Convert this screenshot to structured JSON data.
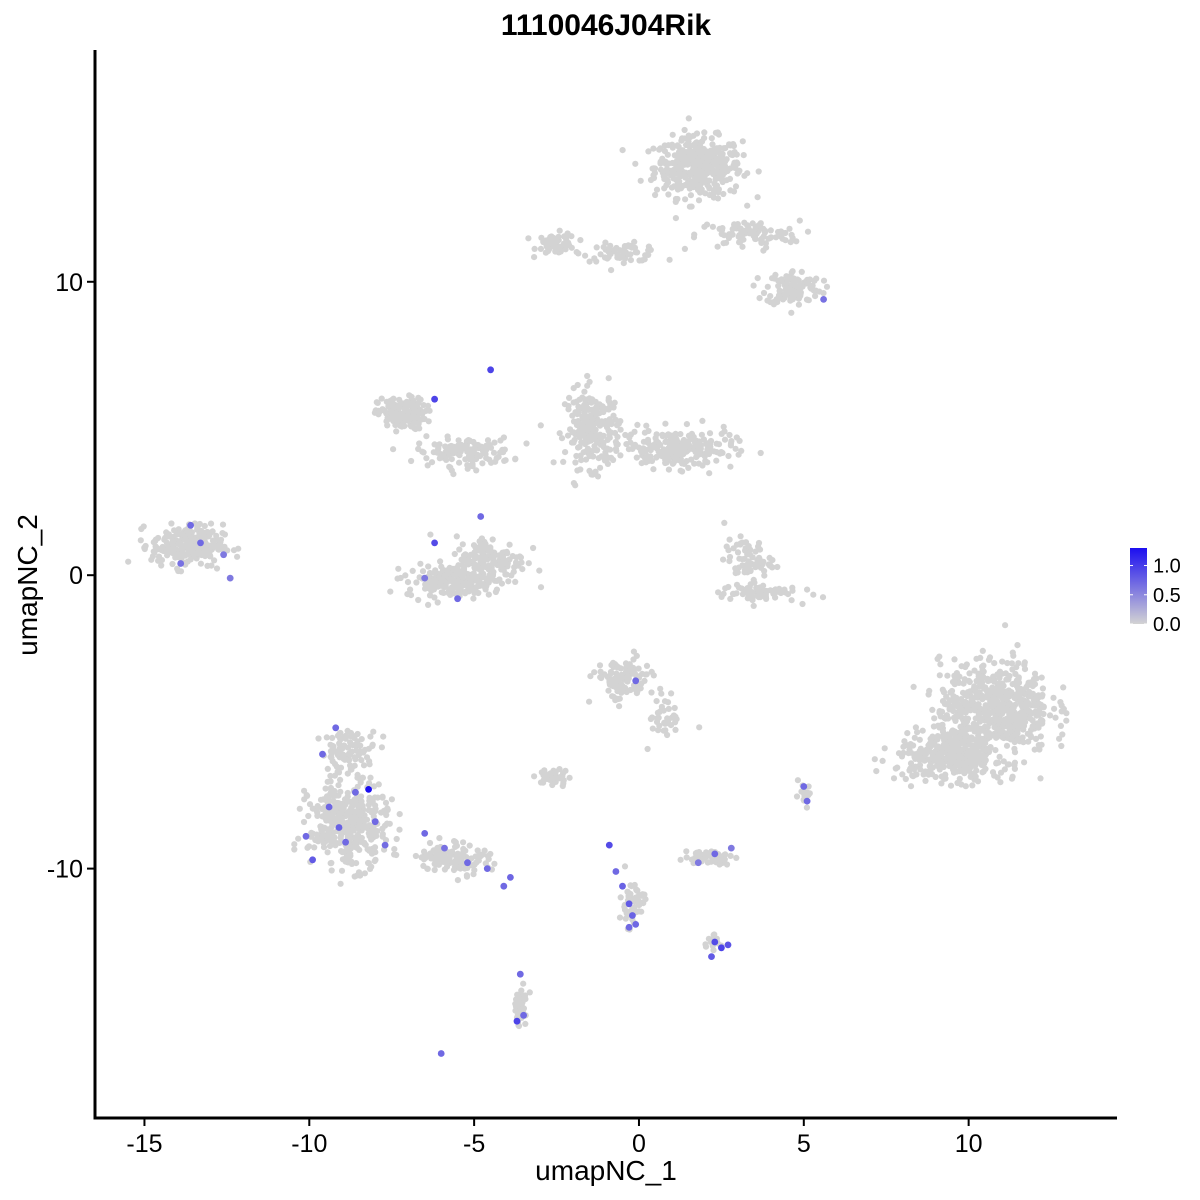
{
  "chart_data": {
    "type": "scatter",
    "title": "1110046J04Rik",
    "xlabel": "umapNC_1",
    "ylabel": "umapNC_2",
    "xlim": [
      -16.5,
      14.5
    ],
    "ylim": [
      -18.5,
      17.9
    ],
    "x_ticks": [
      -15,
      -10,
      -5,
      0,
      5,
      10
    ],
    "x_tick_labels": [
      "-15",
      "-10",
      "-5",
      "0",
      "5",
      "10"
    ],
    "y_ticks": [
      -10,
      0,
      10
    ],
    "y_tick_labels": [
      "-10",
      "0",
      "10"
    ],
    "grid": false,
    "legend": {
      "placement": "right",
      "title": "",
      "ticks": [
        0.0,
        0.5,
        1.0
      ],
      "tick_labels": [
        "0.0",
        "0.5",
        "1.0"
      ],
      "range": [
        0,
        1.3
      ],
      "low_color": "#d3d3d3",
      "high_color": "#1c0ff0"
    },
    "point_color_zero": "#d3d3d3",
    "clusters": [
      {
        "center": [
          1.8,
          13.9
        ],
        "spread": [
          1.1,
          0.85
        ],
        "n": 420
      },
      {
        "center": [
          -2.5,
          11.3
        ],
        "spread": [
          0.5,
          0.3
        ],
        "n": 60
      },
      {
        "center": [
          -0.5,
          11.0
        ],
        "spread": [
          1.0,
          0.25
        ],
        "n": 60
      },
      {
        "center": [
          3.3,
          11.6
        ],
        "spread": [
          1.3,
          0.4
        ],
        "n": 90
      },
      {
        "center": [
          4.7,
          9.8
        ],
        "spread": [
          0.7,
          0.5
        ],
        "n": 110
      },
      {
        "center": [
          -7.2,
          5.5
        ],
        "spread": [
          0.6,
          0.45
        ],
        "n": 160
      },
      {
        "center": [
          -5.3,
          4.2
        ],
        "spread": [
          1.2,
          0.4
        ],
        "n": 130
      },
      {
        "center": [
          -1.4,
          5.0
        ],
        "spread": [
          0.7,
          1.1
        ],
        "n": 230
      },
      {
        "center": [
          1.2,
          4.3
        ],
        "spread": [
          1.4,
          0.55
        ],
        "n": 220
      },
      {
        "center": [
          -13.7,
          1.0
        ],
        "spread": [
          0.9,
          0.6
        ],
        "n": 240
      },
      {
        "center": [
          -4.5,
          0.5
        ],
        "spread": [
          0.9,
          0.7
        ],
        "n": 150
      },
      {
        "center": [
          -5.7,
          -0.2
        ],
        "spread": [
          1.1,
          0.45
        ],
        "n": 190
      },
      {
        "center": [
          3.3,
          0.5
        ],
        "spread": [
          0.6,
          0.6
        ],
        "n": 70
      },
      {
        "center": [
          3.6,
          -0.6
        ],
        "spread": [
          1.0,
          0.25
        ],
        "n": 70
      },
      {
        "center": [
          10.8,
          -4.5
        ],
        "spread": [
          1.4,
          1.3
        ],
        "n": 600
      },
      {
        "center": [
          9.5,
          -6.2
        ],
        "spread": [
          1.4,
          0.7
        ],
        "n": 350
      },
      {
        "center": [
          -0.5,
          -3.6
        ],
        "spread": [
          0.7,
          0.6
        ],
        "n": 120
      },
      {
        "center": [
          0.8,
          -4.8
        ],
        "spread": [
          0.4,
          0.7
        ],
        "n": 40
      },
      {
        "center": [
          -8.8,
          -8.5
        ],
        "spread": [
          1.0,
          1.2
        ],
        "n": 380
      },
      {
        "center": [
          -8.8,
          -6.0
        ],
        "spread": [
          0.7,
          0.6
        ],
        "n": 90
      },
      {
        "center": [
          -5.6,
          -9.6
        ],
        "spread": [
          0.9,
          0.45
        ],
        "n": 120
      },
      {
        "center": [
          -2.6,
          -6.9
        ],
        "spread": [
          0.4,
          0.25
        ],
        "n": 45
      },
      {
        "center": [
          2.1,
          -9.6
        ],
        "spread": [
          0.6,
          0.2
        ],
        "n": 55
      },
      {
        "center": [
          -0.2,
          -11.2
        ],
        "spread": [
          0.3,
          0.7
        ],
        "n": 55
      },
      {
        "center": [
          -3.6,
          -14.7
        ],
        "spread": [
          0.2,
          0.6
        ],
        "n": 35
      },
      {
        "center": [
          2.2,
          -12.5
        ],
        "spread": [
          0.25,
          0.2
        ],
        "n": 20
      },
      {
        "center": [
          5.0,
          -7.5
        ],
        "spread": [
          0.2,
          0.3
        ],
        "n": 15
      }
    ],
    "expressing_points": [
      {
        "x": -8.2,
        "y": -7.3,
        "v": 1.3
      },
      {
        "x": -9.9,
        "y": -9.7,
        "v": 0.8
      },
      {
        "x": -9.1,
        "y": -8.6,
        "v": 0.75
      },
      {
        "x": -8.6,
        "y": -7.4,
        "v": 0.7
      },
      {
        "x": -9.6,
        "y": -6.1,
        "v": 0.7
      },
      {
        "x": -8.9,
        "y": -9.1,
        "v": 0.7
      },
      {
        "x": -9.4,
        "y": -7.9,
        "v": 0.72
      },
      {
        "x": -8.0,
        "y": -8.4,
        "v": 0.7
      },
      {
        "x": -7.7,
        "y": -9.2,
        "v": 0.68
      },
      {
        "x": -9.2,
        "y": -5.2,
        "v": 0.7
      },
      {
        "x": -10.1,
        "y": -8.9,
        "v": 0.7
      },
      {
        "x": -6.5,
        "y": -8.8,
        "v": 0.7
      },
      {
        "x": -5.9,
        "y": -9.3,
        "v": 0.65
      },
      {
        "x": -5.2,
        "y": -9.8,
        "v": 0.7
      },
      {
        "x": -4.6,
        "y": -10.0,
        "v": 0.7
      },
      {
        "x": -3.9,
        "y": -10.3,
        "v": 0.72
      },
      {
        "x": -4.1,
        "y": -10.6,
        "v": 0.7
      },
      {
        "x": -0.9,
        "y": -9.2,
        "v": 0.9
      },
      {
        "x": -0.7,
        "y": -10.1,
        "v": 0.7
      },
      {
        "x": -0.5,
        "y": -10.6,
        "v": 0.75
      },
      {
        "x": -0.3,
        "y": -11.2,
        "v": 0.8
      },
      {
        "x": -0.2,
        "y": -11.6,
        "v": 0.75
      },
      {
        "x": -0.3,
        "y": -12.0,
        "v": 0.7
      },
      {
        "x": -0.1,
        "y": -11.9,
        "v": 0.7
      },
      {
        "x": 2.3,
        "y": -12.5,
        "v": 0.9
      },
      {
        "x": 2.5,
        "y": -12.7,
        "v": 0.95
      },
      {
        "x": 2.2,
        "y": -13.0,
        "v": 0.8
      },
      {
        "x": 2.7,
        "y": -12.6,
        "v": 0.85
      },
      {
        "x": -3.7,
        "y": -15.2,
        "v": 0.95
      },
      {
        "x": -3.5,
        "y": -15.0,
        "v": 0.7
      },
      {
        "x": -3.6,
        "y": -13.6,
        "v": 0.7
      },
      {
        "x": -6.0,
        "y": -16.3,
        "v": 0.7
      },
      {
        "x": -6.2,
        "y": 6.0,
        "v": 0.95
      },
      {
        "x": -4.5,
        "y": 7.0,
        "v": 0.95
      },
      {
        "x": -6.2,
        "y": 1.1,
        "v": 0.9
      },
      {
        "x": -5.5,
        "y": -0.8,
        "v": 0.7
      },
      {
        "x": -4.8,
        "y": 2.0,
        "v": 0.7
      },
      {
        "x": -6.5,
        "y": -0.1,
        "v": 0.6
      },
      {
        "x": -13.6,
        "y": 1.7,
        "v": 0.7
      },
      {
        "x": -13.3,
        "y": 1.1,
        "v": 0.7
      },
      {
        "x": -13.9,
        "y": 0.4,
        "v": 0.65
      },
      {
        "x": -12.6,
        "y": 0.7,
        "v": 0.6
      },
      {
        "x": -12.4,
        "y": -0.1,
        "v": 0.6
      },
      {
        "x": -0.1,
        "y": -3.6,
        "v": 0.7
      },
      {
        "x": 5.6,
        "y": 9.4,
        "v": 0.65
      },
      {
        "x": 5.0,
        "y": -7.2,
        "v": 0.7
      },
      {
        "x": 5.1,
        "y": -7.7,
        "v": 0.7
      },
      {
        "x": 2.3,
        "y": -9.5,
        "v": 0.7
      },
      {
        "x": 1.8,
        "y": -9.8,
        "v": 0.6
      },
      {
        "x": 2.8,
        "y": -9.3,
        "v": 0.6
      }
    ]
  }
}
